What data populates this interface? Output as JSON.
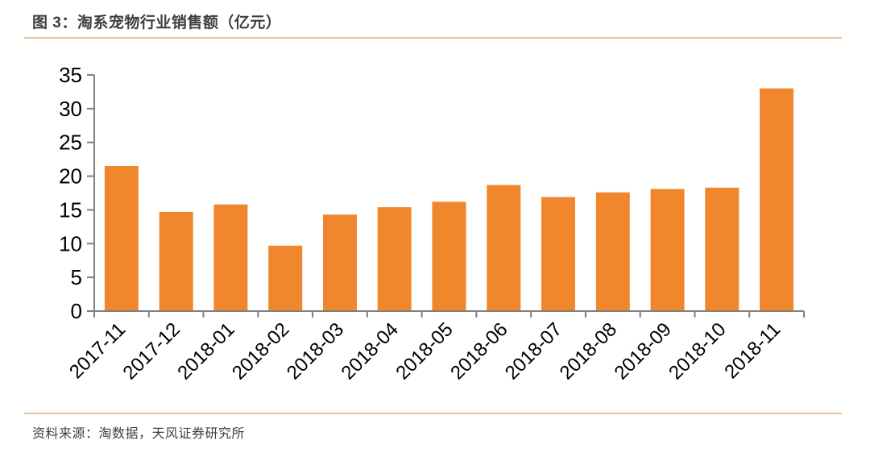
{
  "figure": {
    "title": "图 3：淘系宠物行业销售额（亿元）",
    "source": "资料来源：淘数据，天风证券研究所"
  },
  "chart_data": {
    "type": "bar",
    "title": "淘系宠物行业销售额（亿元）",
    "categories": [
      "2017-11",
      "2017-12",
      "2018-01",
      "2018-02",
      "2018-03",
      "2018-04",
      "2018-05",
      "2018-06",
      "2018-07",
      "2018-08",
      "2018-09",
      "2018-10",
      "2018-11"
    ],
    "values": [
      21.5,
      14.7,
      15.8,
      9.7,
      14.3,
      15.4,
      16.2,
      18.7,
      16.9,
      17.6,
      18.1,
      18.3,
      33.0
    ],
    "xlabel": "",
    "ylabel": "",
    "ylim": [
      0,
      35
    ],
    "ytick_step": 5,
    "grid": false,
    "legend_position": "none",
    "bar_color": "#F0872D",
    "axis_color": "#808080",
    "label_color": "#000000"
  },
  "style": {
    "divider_color": "#E6C49C",
    "title_color": "#3F3F3F"
  }
}
